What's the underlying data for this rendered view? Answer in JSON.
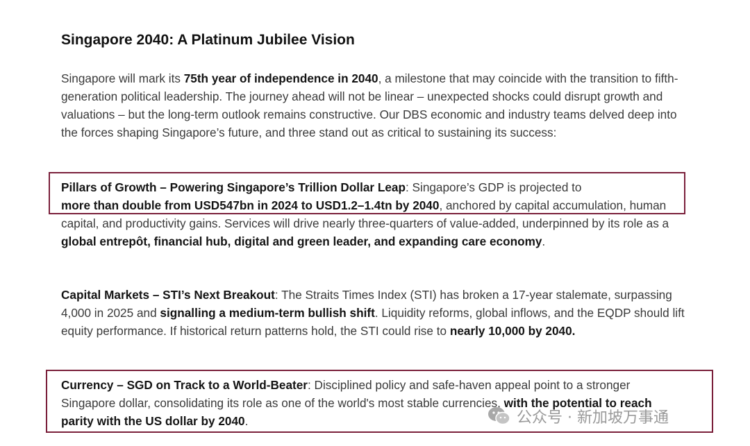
{
  "title": "Singapore 2040: A Platinum Jubilee Vision",
  "intro": {
    "t1": "Singapore will mark its ",
    "b1": "75th year of independence in 2040",
    "t2": ", a milestone that may coincide with the transition to fifth-generation political leadership. The journey ahead will not be linear – unexpected shocks could disrupt growth and valuations – but the long-term outlook remains constructive. Our DBS economic and industry teams delved deep into the forces shaping Singapore’s future, and three stand out as critical to sustaining its success:"
  },
  "pillars": {
    "b1": "Pillars of Growth – Powering Singapore’s Trillion Dollar Leap",
    "t1": ": Singapore’s GDP is projected to ",
    "b2": "more than double from USD547bn in 2024 to USD1.2–1.4tn by 2040",
    "t2": ", anchored by capital accumulation, human capital, and productivity gains. Services will drive nearly three-quarters of value-added, underpinned by its role as a ",
    "b3": "global entrepôt, financial hub, digital and green leader, and expanding care economy",
    "t3": "."
  },
  "capital": {
    "b1": "Capital Markets – STI’s Next Breakout",
    "t1": ": The Straits Times Index (STI) has broken a 17-year stalemate, surpassing 4,000 in 2025 and ",
    "b2": "signalling a medium-term bullish shift",
    "t2": ". Liquidity reforms, global inflows, and the EQDP should lift equity performance. If historical return patterns hold, the STI could rise to ",
    "b3": "nearly 10,000 by 2040."
  },
  "currency": {
    "b1": "Currency – SGD on Track to a World-Beater",
    "t1": ": Disciplined policy and safe-haven appeal point to a stronger Singapore dollar, consolidating its role as one of the world's most stable currencies, ",
    "b2": "with the potential to reach parity with the US dollar by 2040",
    "t2": "."
  },
  "watermark": {
    "icon": "wechat-icon",
    "text": "公众号 · 新加坡万事通"
  },
  "colors": {
    "highlight_box": "#7a1f3a"
  }
}
